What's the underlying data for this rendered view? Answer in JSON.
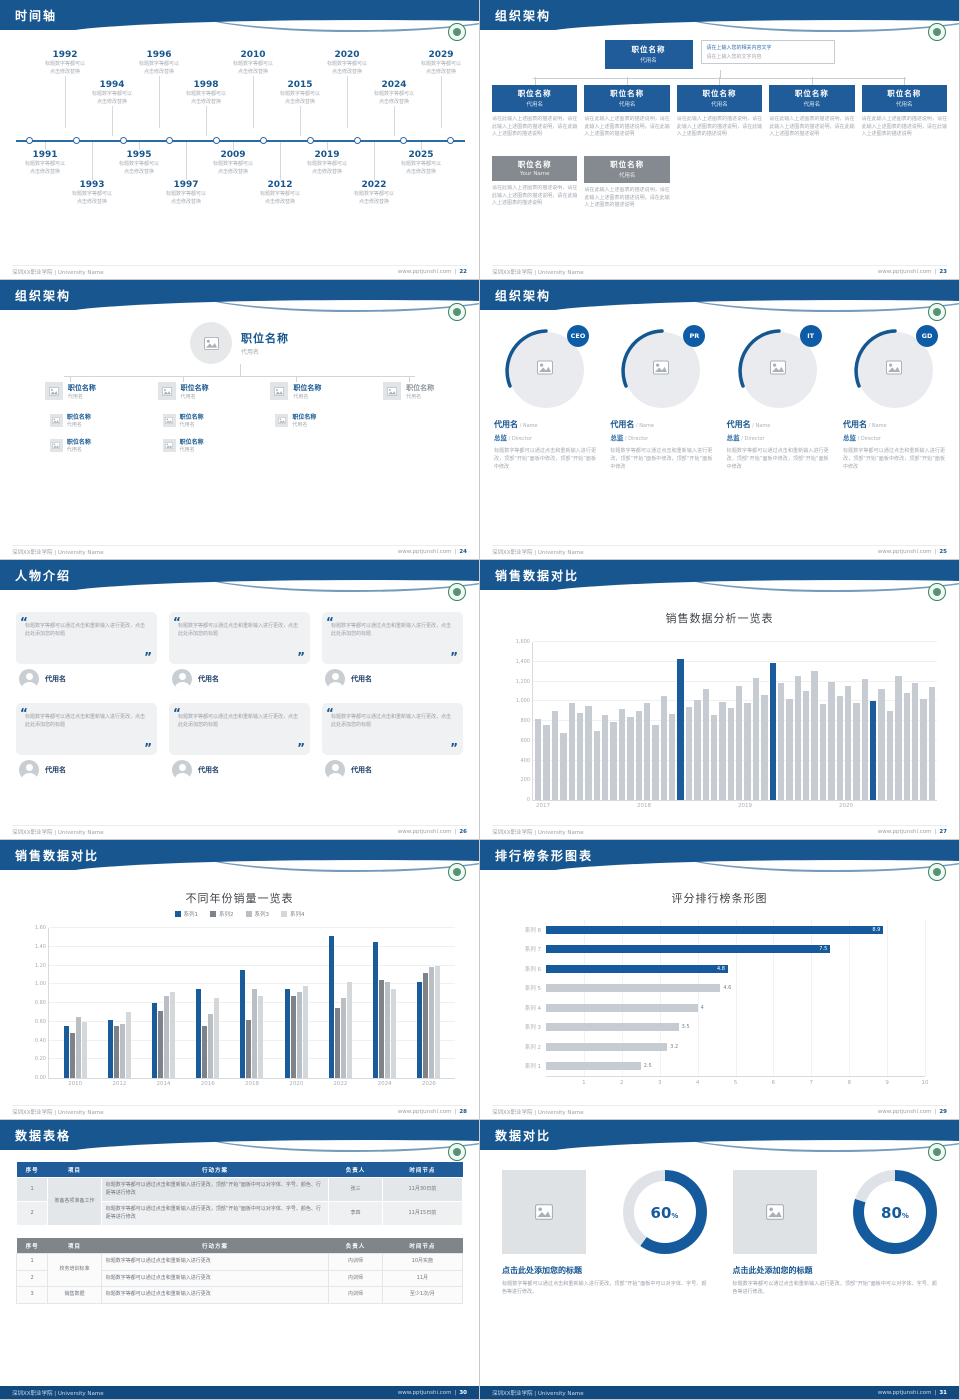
{
  "footer": {
    "left": "深圳XX职业学院 | University Name",
    "site": "www.pptjunshi.com",
    "sep": "|"
  },
  "slides": {
    "timeline": {
      "title": "时间轴",
      "page": "22",
      "note_line1": "标题数字等都可以",
      "note_line2": "点击修改替换",
      "top_years": [
        "1992",
        "1994",
        "1996",
        "1998",
        "2010",
        "2015",
        "2020",
        "2024",
        "2029"
      ],
      "bottom_years": [
        "1991",
        "1993",
        "1995",
        "1997",
        "2009",
        "2012",
        "2019",
        "2022",
        "2025"
      ]
    },
    "org_boxes": {
      "title": "组织架构",
      "page": "23",
      "root": {
        "name": "职位名称",
        "sub": "代用名"
      },
      "root_note_1": "请在上输入您的相关内容文字",
      "root_note_2": "请在上输入您的文字内容",
      "row1": [
        {
          "name": "职位名称",
          "sub": "代用名"
        },
        {
          "name": "职位名称",
          "sub": "代用名"
        },
        {
          "name": "职位名称",
          "sub": "代用名"
        },
        {
          "name": "职位名称",
          "sub": "代用名"
        },
        {
          "name": "职位名称",
          "sub": "代用名"
        }
      ],
      "row1_note": "请在此输入上述图表的描述说明，请在此输入上述图表的描述说明，请在此输入上述图表的描述说明",
      "row2": [
        {
          "name": "职位名称",
          "sub": "Your Name"
        },
        {
          "name": "职位名称",
          "sub": "代用名"
        }
      ],
      "row2_note": "请在此输入上述图表的描述说明，请在此输入上述图表的描述说明，请在此输入上述图表的描述说明"
    },
    "org_tree": {
      "title": "组织架构",
      "page": "24",
      "root": {
        "name": "职位名称",
        "sub": "代用名"
      },
      "level1": [
        {
          "name": "职位名称",
          "sub": "代用名"
        },
        {
          "name": "职位名称",
          "sub": "代用名"
        },
        {
          "name": "职位名称",
          "sub": "代用名"
        },
        {
          "name": "职位名称",
          "sub": "代用名",
          "muted": true
        }
      ],
      "level2": [
        [
          {
            "name": "职位名称",
            "sub": "代用名"
          },
          {
            "name": "职位名称",
            "sub": "代用名"
          }
        ],
        [
          {
            "name": "职位名称",
            "sub": "代用名"
          },
          {
            "name": "职位名称",
            "sub": "代用名"
          }
        ],
        [
          {
            "name": "职位名称",
            "sub": "代用名"
          }
        ],
        []
      ]
    },
    "org_circles": {
      "title": "组织架构",
      "page": "25",
      "members": [
        {
          "badge": "CEO",
          "name": "代用名",
          "name_en": "/ Name",
          "role": "总监",
          "role_en": "/ Director",
          "desc": "标题数字等都可以通过点击和重新输入进行更改，顶部“开始”面板中修改，顶部“开始”面板中修改"
        },
        {
          "badge": "PR",
          "name": "代用名",
          "name_en": "/ Name",
          "role": "总监",
          "role_en": "/ Director",
          "desc": "标题数字等都可以通过点击和重新输入进行更改，顶部“开始”面板中修改，顶部“开始”面板中修改"
        },
        {
          "badge": "IT",
          "name": "代用名",
          "name_en": "/ Name",
          "role": "总监",
          "role_en": "/ Director",
          "desc": "标题数字等都可以通过点击和重新输入进行更改，顶部“开始”面板中修改，顶部“开始”面板中修改"
        },
        {
          "badge": "GD",
          "name": "代用名",
          "name_en": "/ Name",
          "role": "总监",
          "role_en": "/ Director",
          "desc": "标题数字等都可以通过点击和重新输入进行更改，顶部“开始”面板中修改，顶部“开始”面板中修改"
        }
      ]
    },
    "people": {
      "title": "人物介绍",
      "page": "26",
      "quote_open": "“",
      "quote_close": "”",
      "cards": [
        {
          "quote": "标题数字等都可以通过点击和重新输入进行更改，点击此处添加您的标题",
          "name": "代用名"
        },
        {
          "quote": "标题数字等都可以通过点击和重新输入进行更改，点击此处添加您的标题",
          "name": "代用名"
        },
        {
          "quote": "标题数字等都可以通过点击和重新输入进行更改，点击此处添加您的标题",
          "name": "代用名"
        },
        {
          "quote": "标题数字等都可以通过点击和重新输入进行更改，点击此处添加您的标题",
          "name": "代用名"
        },
        {
          "quote": "标题数字等都可以通过点击和重新输入进行更改，点击此处添加您的标题",
          "name": "代用名"
        },
        {
          "quote": "标题数字等都可以通过点击和重新输入进行更改，点击此处添加您的标题",
          "name": "代用名"
        }
      ]
    },
    "sales_trend": {
      "title": "销售数据对比",
      "page": "27"
    },
    "sales_year": {
      "title": "销售数据对比",
      "page": "28"
    },
    "ranking": {
      "title": "排行榜条形图表",
      "page": "29"
    },
    "tables": {
      "title": "数据表格",
      "page": "30",
      "t1": {
        "headers": [
          "序号",
          "项目",
          "行动方案",
          "负责人",
          "时间节点"
        ],
        "rows": [
          [
            "1",
            "筹备各项准备工作",
            "标题数字等都可以通过点击和重新输入进行更改，顶部“开始”面板中可以对字体、字号、颜色、行距等进行修改",
            "张三",
            "11月30日前"
          ],
          [
            "2",
            "",
            "标题数字等都可以通过点击和重新输入进行更改，顶部“开始”面板中可以对字体、字号、颜色、行距等进行修改",
            "李四",
            "11月15日前"
          ]
        ]
      },
      "t2": {
        "headers": [
          "序号",
          "项目",
          "行动方案",
          "负责人",
          "时间节点"
        ],
        "rows": [
          [
            "1",
            "校务培训标准",
            "标题数字等都可以通过点击和重新输入进行更改",
            "内训师",
            "10月实施"
          ],
          [
            "2",
            "",
            "标题数字等都可以通过点击和重新输入进行更改",
            "内训师",
            "11月"
          ],
          [
            "3",
            "销售数据",
            "标题数字等都可以通过点击和重新输入进行更改",
            "内训师",
            "至少1次/月"
          ]
        ]
      }
    },
    "compare": {
      "title": "数据对比",
      "page": "31",
      "panels": [
        {
          "heading": "点击此处添加您的标题",
          "body": "标题数字等都可以通过点击和重新输入进行更改，顶部“开始”面板中可以对字体、字号、颜色等进行修改。"
        },
        {
          "heading": "点击此处添加您的标题",
          "body": "标题数字等都可以通过点击和重新输入进行更改，顶部“开始”面板中可以对字体、字号、颜色等进行修改。"
        }
      ]
    }
  },
  "chart_data": [
    {
      "id": "sales_trend",
      "type": "bar",
      "title": "销售数据分析一览表",
      "x_groups": [
        "2017",
        "2018",
        "2019",
        "2020"
      ],
      "ylim": [
        0,
        1600
      ],
      "ytick_step": 200,
      "bar_color": "#c7ccd2",
      "highlight_color": "#1a5b9b",
      "highlight_indices": [
        17,
        28,
        40
      ],
      "values": [
        820,
        760,
        900,
        680,
        980,
        880,
        950,
        700,
        860,
        790,
        920,
        840,
        900,
        980,
        760,
        1050,
        870,
        1430,
        940,
        1010,
        1120,
        860,
        990,
        930,
        1150,
        980,
        1240,
        1060,
        1390,
        1180,
        1020,
        1260,
        1100,
        1310,
        970,
        1200,
        1050,
        1150,
        980,
        1230,
        1005,
        1120,
        900,
        1260,
        1080,
        1180,
        1020,
        1140
      ]
    },
    {
      "id": "sales_year",
      "type": "bar",
      "title": "不同年份销量一览表",
      "categories": [
        "2010",
        "2012",
        "2014",
        "2016",
        "2018",
        "2020",
        "2022",
        "2024",
        "2026"
      ],
      "ylim": [
        0,
        1.6
      ],
      "ytick_step": 0.2,
      "series": [
        {
          "name": "系列1",
          "color": "#1a5b9b",
          "values": [
            0.55,
            0.62,
            0.8,
            0.95,
            1.15,
            0.95,
            1.52,
            1.45,
            1.02
          ]
        },
        {
          "name": "系列2",
          "color": "#7d8389",
          "values": [
            0.48,
            0.55,
            0.72,
            0.55,
            0.62,
            0.88,
            0.75,
            1.05,
            1.12
          ]
        },
        {
          "name": "系列3",
          "color": "#b9bfc5",
          "values": [
            0.65,
            0.58,
            0.88,
            0.68,
            0.95,
            0.92,
            0.85,
            1.02,
            1.18
          ]
        },
        {
          "name": "系列4",
          "color": "#d4d8db",
          "values": [
            0.6,
            0.7,
            0.92,
            0.85,
            0.88,
            0.98,
            1.02,
            0.95,
            1.2
          ]
        }
      ]
    },
    {
      "id": "ranking",
      "type": "bar_horizontal",
      "title": "评分排行榜条形图",
      "categories": [
        "系列 8",
        "系列 7",
        "系列 6",
        "系列 5",
        "系列 4",
        "系列 3",
        "系列 2",
        "系列 1"
      ],
      "values": [
        8.9,
        7.5,
        4.8,
        4.6,
        4,
        3.5,
        3.2,
        2.5
      ],
      "xlim": [
        0,
        10
      ],
      "xticks": [
        1,
        2,
        3,
        4,
        5,
        6,
        7,
        8,
        9,
        10
      ],
      "highlight_count": 3,
      "bar_color": "#c7ccd2",
      "highlight_color": "#155a9c"
    },
    {
      "id": "donuts",
      "type": "donut",
      "values": [
        60,
        80
      ],
      "unit": "%",
      "color": "#155a9c",
      "track_color": "#dfe3e7"
    }
  ]
}
